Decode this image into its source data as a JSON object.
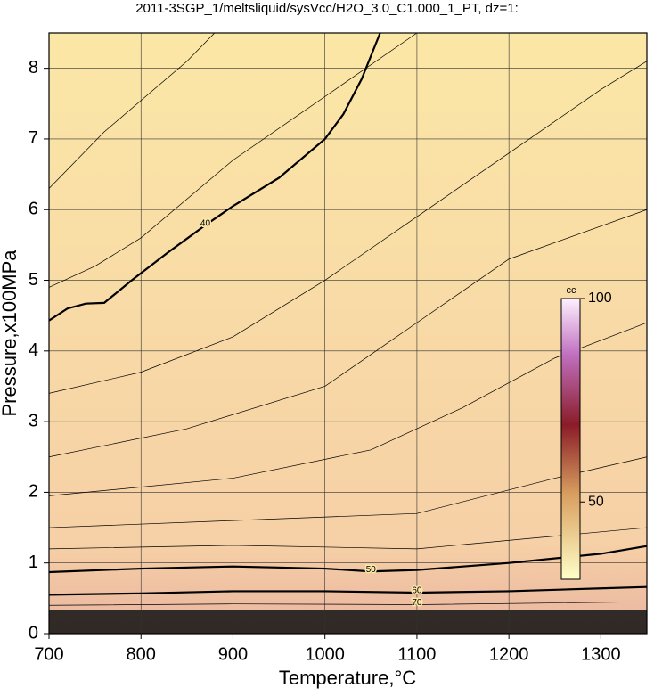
{
  "chart_data": {
    "type": "contour",
    "title": "2011-3SGP_1/meltsliquid/sysVcc/H2O_3.0_C1.000_1_PT, dz=1:",
    "x_label": "Temperature,°C",
    "y_label": "Pressure,x100MPa",
    "xlim": [
      700,
      1350
    ],
    "ylim": [
      0,
      8.5
    ],
    "xticks": [
      700,
      800,
      900,
      1000,
      1100,
      1200,
      1300
    ],
    "yticks": [
      0,
      1,
      2,
      3,
      4,
      5,
      6,
      7,
      8
    ],
    "grid": true,
    "contours": [
      {
        "label": "40",
        "bold": true,
        "x": [
          700,
          720,
          740,
          760,
          790,
          830,
          870,
          900,
          950,
          1000,
          1020,
          1040,
          1060
        ],
        "y": [
          4.43,
          4.6,
          4.67,
          4.68,
          5.0,
          5.4,
          5.78,
          6.05,
          6.45,
          7.0,
          7.35,
          7.85,
          8.5
        ]
      },
      {
        "label": "50",
        "bold": true,
        "x": [
          700,
          800,
          900,
          1000,
          1050,
          1100,
          1200,
          1300,
          1350
        ],
        "y": [
          0.87,
          0.92,
          0.95,
          0.92,
          0.88,
          0.9,
          1.0,
          1.13,
          1.24
        ]
      },
      {
        "label": "60",
        "bold": true,
        "x": [
          700,
          800,
          900,
          1000,
          1100,
          1200,
          1300,
          1350
        ],
        "y": [
          0.55,
          0.57,
          0.6,
          0.6,
          0.58,
          0.6,
          0.64,
          0.66
        ]
      },
      {
        "label": "70",
        "bold": false,
        "x": [
          700,
          900,
          1100,
          1350
        ],
        "y": [
          0.4,
          0.42,
          0.41,
          0.45
        ]
      },
      {
        "bold": false,
        "x": [
          700,
          760,
          850,
          880
        ],
        "y": [
          6.3,
          7.1,
          8.1,
          8.5
        ]
      },
      {
        "bold": false,
        "x": [
          700,
          750,
          800,
          900,
          1000,
          1100
        ],
        "y": [
          4.9,
          5.2,
          5.6,
          6.7,
          7.6,
          8.5
        ]
      },
      {
        "bold": false,
        "x": [
          700,
          800,
          900,
          1000,
          1100,
          1200,
          1300,
          1350
        ],
        "y": [
          3.4,
          3.7,
          4.2,
          5.0,
          5.9,
          6.8,
          7.7,
          8.1
        ]
      },
      {
        "bold": false,
        "x": [
          700,
          850,
          1000,
          1100,
          1200,
          1350
        ],
        "y": [
          2.5,
          2.9,
          3.5,
          4.4,
          5.3,
          6.0
        ]
      },
      {
        "bold": false,
        "x": [
          700,
          900,
          1050,
          1150,
          1250,
          1350
        ],
        "y": [
          1.95,
          2.2,
          2.6,
          3.2,
          3.9,
          4.4
        ]
      },
      {
        "bold": false,
        "x": [
          700,
          900,
          1100,
          1250,
          1350
        ],
        "y": [
          1.5,
          1.6,
          1.7,
          2.2,
          2.5
        ]
      },
      {
        "bold": false,
        "x": [
          700,
          900,
          1100,
          1350
        ],
        "y": [
          1.2,
          1.25,
          1.2,
          1.5
        ]
      }
    ],
    "colorbar": {
      "label": "cc",
      "clim": [
        31,
        100
      ],
      "ticks": [
        100,
        50
      ]
    }
  }
}
